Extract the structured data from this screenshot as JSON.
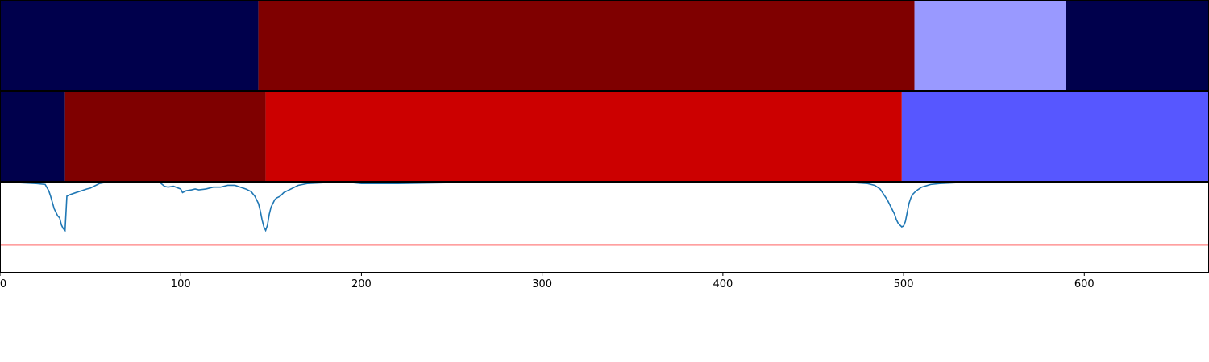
{
  "chart_data": [
    {
      "type": "heatmap",
      "row": "top-segmentation",
      "segments": [
        {
          "start": 0,
          "end": 143,
          "color": "#00004c"
        },
        {
          "start": 143,
          "end": 506,
          "color": "#7f0000"
        },
        {
          "start": 506,
          "end": 590,
          "color": "#9999ff"
        },
        {
          "start": 590,
          "end": 669,
          "color": "#00004c"
        }
      ]
    },
    {
      "type": "heatmap",
      "row": "middle-segmentation",
      "segments": [
        {
          "start": 0,
          "end": 36,
          "color": "#00004c"
        },
        {
          "start": 36,
          "end": 147,
          "color": "#7f0000"
        },
        {
          "start": 147,
          "end": 499,
          "color": "#cc0000"
        },
        {
          "start": 499,
          "end": 669,
          "color": "#5757ff"
        }
      ]
    },
    {
      "type": "line",
      "xlim": [
        0,
        669
      ],
      "ylim": [
        -0.5,
        0.0
      ],
      "xticks": [
        "0",
        "100",
        "200",
        "300",
        "400",
        "500",
        "600"
      ],
      "xtick_values": [
        0,
        100,
        200,
        300,
        400,
        500,
        600
      ],
      "series": [
        {
          "color": "#1f77b4",
          "x": [
            0,
            10,
            20,
            25,
            27,
            28,
            30,
            31,
            32,
            33,
            34,
            35,
            36,
            37,
            39,
            42,
            45,
            48,
            50,
            55,
            60,
            70,
            80,
            88,
            91,
            93,
            96,
            100,
            101,
            103,
            106,
            108,
            110,
            114,
            118,
            122,
            126,
            130,
            133,
            136,
            139,
            141,
            143,
            144,
            145,
            146,
            147,
            148,
            149,
            150,
            151,
            152,
            153,
            154,
            155,
            156,
            157,
            160,
            165,
            170,
            180,
            190,
            200,
            220,
            250,
            280,
            300,
            330,
            360,
            400,
            420,
            450,
            470,
            480,
            484,
            487,
            489,
            491,
            493,
            495,
            496,
            497,
            498,
            499,
            500,
            501,
            502,
            503,
            504,
            505,
            507,
            510,
            515,
            520,
            530,
            560,
            600,
            669
          ],
          "y": [
            -0.005,
            -0.005,
            -0.01,
            -0.015,
            -0.05,
            -0.08,
            -0.15,
            -0.17,
            -0.19,
            -0.2,
            -0.24,
            -0.26,
            -0.27,
            -0.08,
            -0.07,
            -0.06,
            -0.05,
            -0.04,
            -0.035,
            -0.01,
            0.0,
            0.0,
            0.0,
            0.0,
            -0.025,
            -0.03,
            -0.025,
            -0.04,
            -0.06,
            -0.05,
            -0.045,
            -0.04,
            -0.045,
            -0.04,
            -0.03,
            -0.03,
            -0.02,
            -0.02,
            -0.03,
            -0.04,
            -0.055,
            -0.08,
            -0.12,
            -0.16,
            -0.21,
            -0.25,
            -0.27,
            -0.24,
            -0.18,
            -0.14,
            -0.12,
            -0.1,
            -0.09,
            -0.085,
            -0.08,
            -0.07,
            -0.06,
            -0.045,
            -0.02,
            -0.01,
            -0.005,
            0.0,
            -0.01,
            -0.01,
            -0.005,
            -0.005,
            -0.005,
            -0.003,
            -0.002,
            -0.003,
            -0.002,
            -0.002,
            -0.003,
            -0.01,
            -0.02,
            -0.04,
            -0.07,
            -0.1,
            -0.14,
            -0.18,
            -0.21,
            -0.23,
            -0.24,
            -0.25,
            -0.245,
            -0.22,
            -0.17,
            -0.12,
            -0.09,
            -0.07,
            -0.05,
            -0.03,
            -0.015,
            -0.01,
            -0.005,
            0.0,
            0.0,
            0.0
          ]
        },
        {
          "color": "#ff0000",
          "constant": -0.35,
          "x": [
            0,
            669
          ],
          "y": [
            -0.35,
            -0.35
          ]
        }
      ]
    }
  ]
}
